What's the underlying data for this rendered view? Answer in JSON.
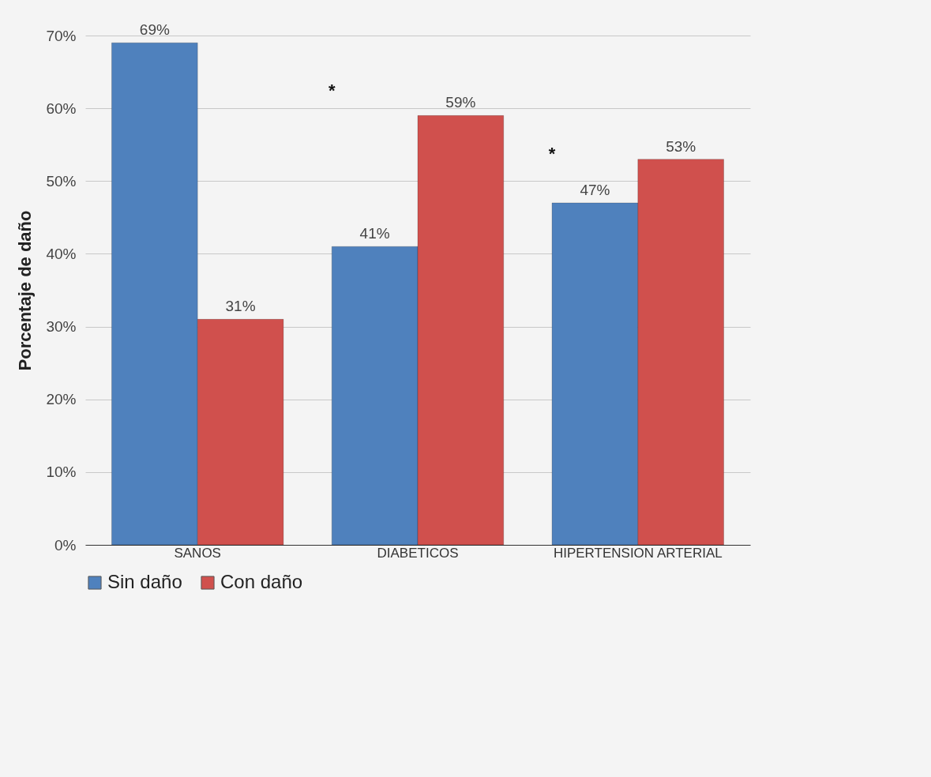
{
  "chart_data": {
    "type": "bar",
    "ylabel": "Porcentaje de daño",
    "categories": [
      "SANOS",
      "DIABETICOS",
      "HIPERTENSION ARTERIAL"
    ],
    "series": [
      {
        "name": "Sin daño",
        "color": "#4f81bd",
        "values": [
          69,
          41,
          47
        ],
        "value_labels": [
          "69%",
          "41%",
          "47%"
        ]
      },
      {
        "name": "Con daño",
        "color": "#d0504d",
        "values": [
          31,
          59,
          53
        ],
        "value_labels": [
          "31%",
          "59%",
          "53%"
        ]
      }
    ],
    "ylim": [
      0,
      70
    ],
    "yticks": [
      {
        "value": 0,
        "label": "0%"
      },
      {
        "value": 10,
        "label": "10%"
      },
      {
        "value": 20,
        "label": "20%"
      },
      {
        "value": 30,
        "label": "30%"
      },
      {
        "value": 40,
        "label": "40%"
      },
      {
        "value": 50,
        "label": "50%"
      },
      {
        "value": 60,
        "label": "60%"
      },
      {
        "value": 70,
        "label": "70%"
      }
    ],
    "annotations": [
      "*",
      "*"
    ],
    "grid": "y",
    "legend": "bottom"
  }
}
